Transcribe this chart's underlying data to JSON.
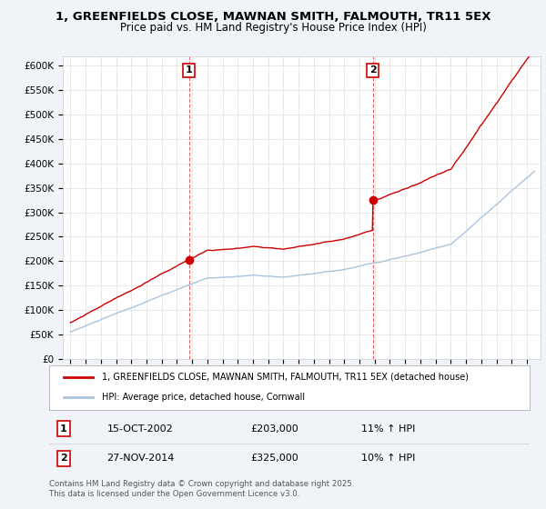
{
  "title_line1": "1, GREENFIELDS CLOSE, MAWNAN SMITH, FALMOUTH, TR11 5EX",
  "title_line2": "Price paid vs. HM Land Registry's House Price Index (HPI)",
  "sale1_date": "15-OCT-2002",
  "sale1_price": 203000,
  "sale1_hpi": "11% ↑ HPI",
  "sale2_date": "27-NOV-2014",
  "sale2_price": 325000,
  "sale2_hpi": "10% ↑ HPI",
  "legend_property": "1, GREENFIELDS CLOSE, MAWNAN SMITH, FALMOUTH, TR11 5EX (detached house)",
  "legend_hpi": "HPI: Average price, detached house, Cornwall",
  "footer": "Contains HM Land Registry data © Crown copyright and database right 2025.\nThis data is licensed under the Open Government Licence v3.0.",
  "property_color": "#cc0000",
  "hpi_color": "#aac4dd",
  "vline_color": "#cc0000",
  "ylim_min": 0,
  "ylim_max": 620000,
  "background_color": "#f0f4f8",
  "plot_bg_color": "#ffffff"
}
